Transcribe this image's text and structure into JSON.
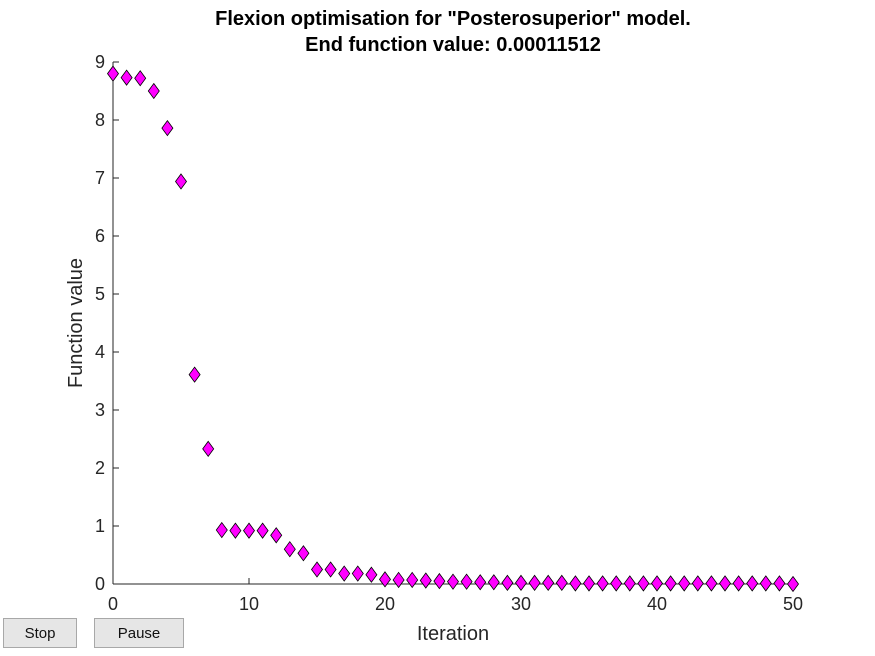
{
  "controls": {
    "stop_label": "Stop",
    "pause_label": "Pause"
  },
  "colors": {
    "marker_fill": "#ff00ff",
    "marker_edge": "#000000",
    "axis": "#262626"
  },
  "chart_data": {
    "type": "scatter",
    "title": "Flexion optimisation for \"Posterosuperior\" model.",
    "subtitle": "End function value: 0.00011512",
    "xlabel": "Iteration",
    "ylabel": "Function value",
    "xlim": [
      0,
      50
    ],
    "ylim": [
      0,
      9
    ],
    "xticks": [
      0,
      10,
      20,
      30,
      40,
      50
    ],
    "yticks": [
      0,
      1,
      2,
      3,
      4,
      5,
      6,
      7,
      8,
      9
    ],
    "grid": false,
    "marker": "diamond",
    "series": [
      {
        "x": [
          0,
          1,
          2,
          3,
          4,
          5,
          6,
          7,
          8,
          9,
          10,
          11,
          12,
          13,
          14,
          15,
          16,
          17,
          18,
          19,
          20,
          21,
          22,
          23,
          24,
          25,
          26,
          27,
          28,
          29,
          30,
          31,
          32,
          33,
          34,
          35,
          36,
          37,
          38,
          39,
          40,
          41,
          42,
          43,
          44,
          45,
          46,
          47,
          48,
          49,
          50
        ],
        "y": [
          8.8,
          8.73,
          8.72,
          8.5,
          7.86,
          6.94,
          3.61,
          2.33,
          0.93,
          0.92,
          0.92,
          0.92,
          0.84,
          0.6,
          0.53,
          0.25,
          0.25,
          0.18,
          0.18,
          0.16,
          0.08,
          0.07,
          0.07,
          0.06,
          0.05,
          0.04,
          0.04,
          0.03,
          0.03,
          0.02,
          0.02,
          0.02,
          0.02,
          0.02,
          0.01,
          0.01,
          0.01,
          0.01,
          0.01,
          0.01,
          0.01,
          0.01,
          0.01,
          0.01,
          0.01,
          0.01,
          0.01,
          0.01,
          0.01,
          0.01,
          0.0001
        ]
      }
    ]
  }
}
